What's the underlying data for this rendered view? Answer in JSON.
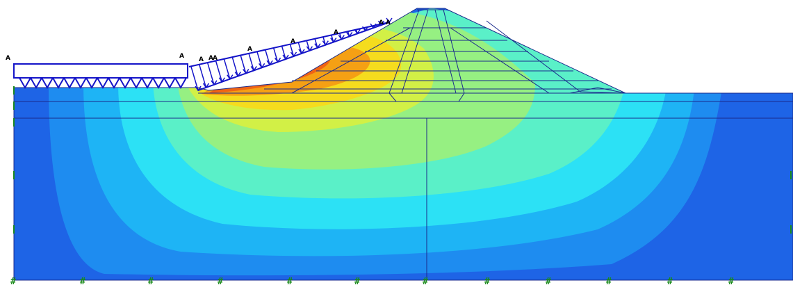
{
  "load_marker": "A",
  "fixity_marker": "#",
  "colors": {
    "background": "#ffffff",
    "mesh_line": "#1a2a8c",
    "load_line": "#1414c8",
    "fixity": "#1a8a1a",
    "contour_levels": [
      "#1e64e6",
      "#1e8cf0",
      "#1eb4f5",
      "#2ce1f5",
      "#5af0c8",
      "#96f082",
      "#d2f046",
      "#f5dc1e",
      "#f5a014",
      "#f06414"
    ]
  },
  "icons": {
    "load": "distributed-load-arrow-icon",
    "fixity": "fixed-support-icon"
  }
}
